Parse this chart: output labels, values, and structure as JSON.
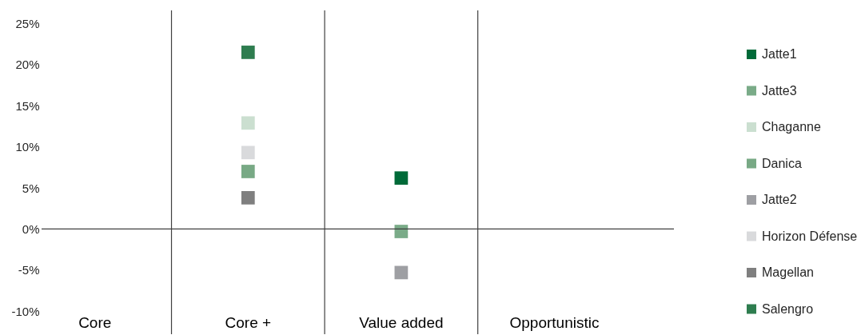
{
  "chart_data": {
    "type": "scatter",
    "marker": "square",
    "legend": "right",
    "grid": "x",
    "categories": [
      "Core",
      "Core +",
      "Value added",
      "Opportunistic"
    ],
    "ylim": [
      -12.8,
      26.6
    ],
    "yticks": [
      {
        "value": -10,
        "label": "-10%"
      },
      {
        "value": -5,
        "label": "-5%"
      },
      {
        "value": 0,
        "label": "0%"
      },
      {
        "value": 5,
        "label": "5%"
      },
      {
        "value": 10,
        "label": "10%"
      },
      {
        "value": 15,
        "label": "15%"
      },
      {
        "value": 20,
        "label": "20%"
      },
      {
        "value": 25,
        "label": "25%"
      }
    ],
    "ref_lines": [
      {
        "axis": "y",
        "value": 0,
        "color": "#404040"
      }
    ],
    "series": [
      {
        "name": "Jatte1",
        "color": "#006a38",
        "x": [
          "Value added"
        ],
        "values": [
          6.2
        ]
      },
      {
        "name": "Jatte3",
        "color": "#7aab88",
        "x": [
          "Value added"
        ],
        "values": [
          -0.3
        ]
      },
      {
        "name": "Chaganne",
        "color": "#cbdfd0",
        "x": [
          "Core +"
        ],
        "values": [
          12.9
        ]
      },
      {
        "name": "Danica",
        "color": "#78a985",
        "x": [
          "Core +"
        ],
        "values": [
          7.0
        ]
      },
      {
        "name": "Jatte2",
        "color": "#9e9fa3",
        "x": [
          "Value added"
        ],
        "values": [
          -5.3
        ]
      },
      {
        "name": "Horizon Défense",
        "color": "#d9dadc",
        "x": [
          "Core +"
        ],
        "values": [
          9.3
        ]
      },
      {
        "name": "Magellan",
        "color": "#7f7f7f",
        "x": [
          "Core +"
        ],
        "values": [
          3.8
        ]
      },
      {
        "name": "Salengro",
        "color": "#2e7d4f",
        "x": [
          "Core +"
        ],
        "values": [
          21.5
        ]
      }
    ]
  }
}
